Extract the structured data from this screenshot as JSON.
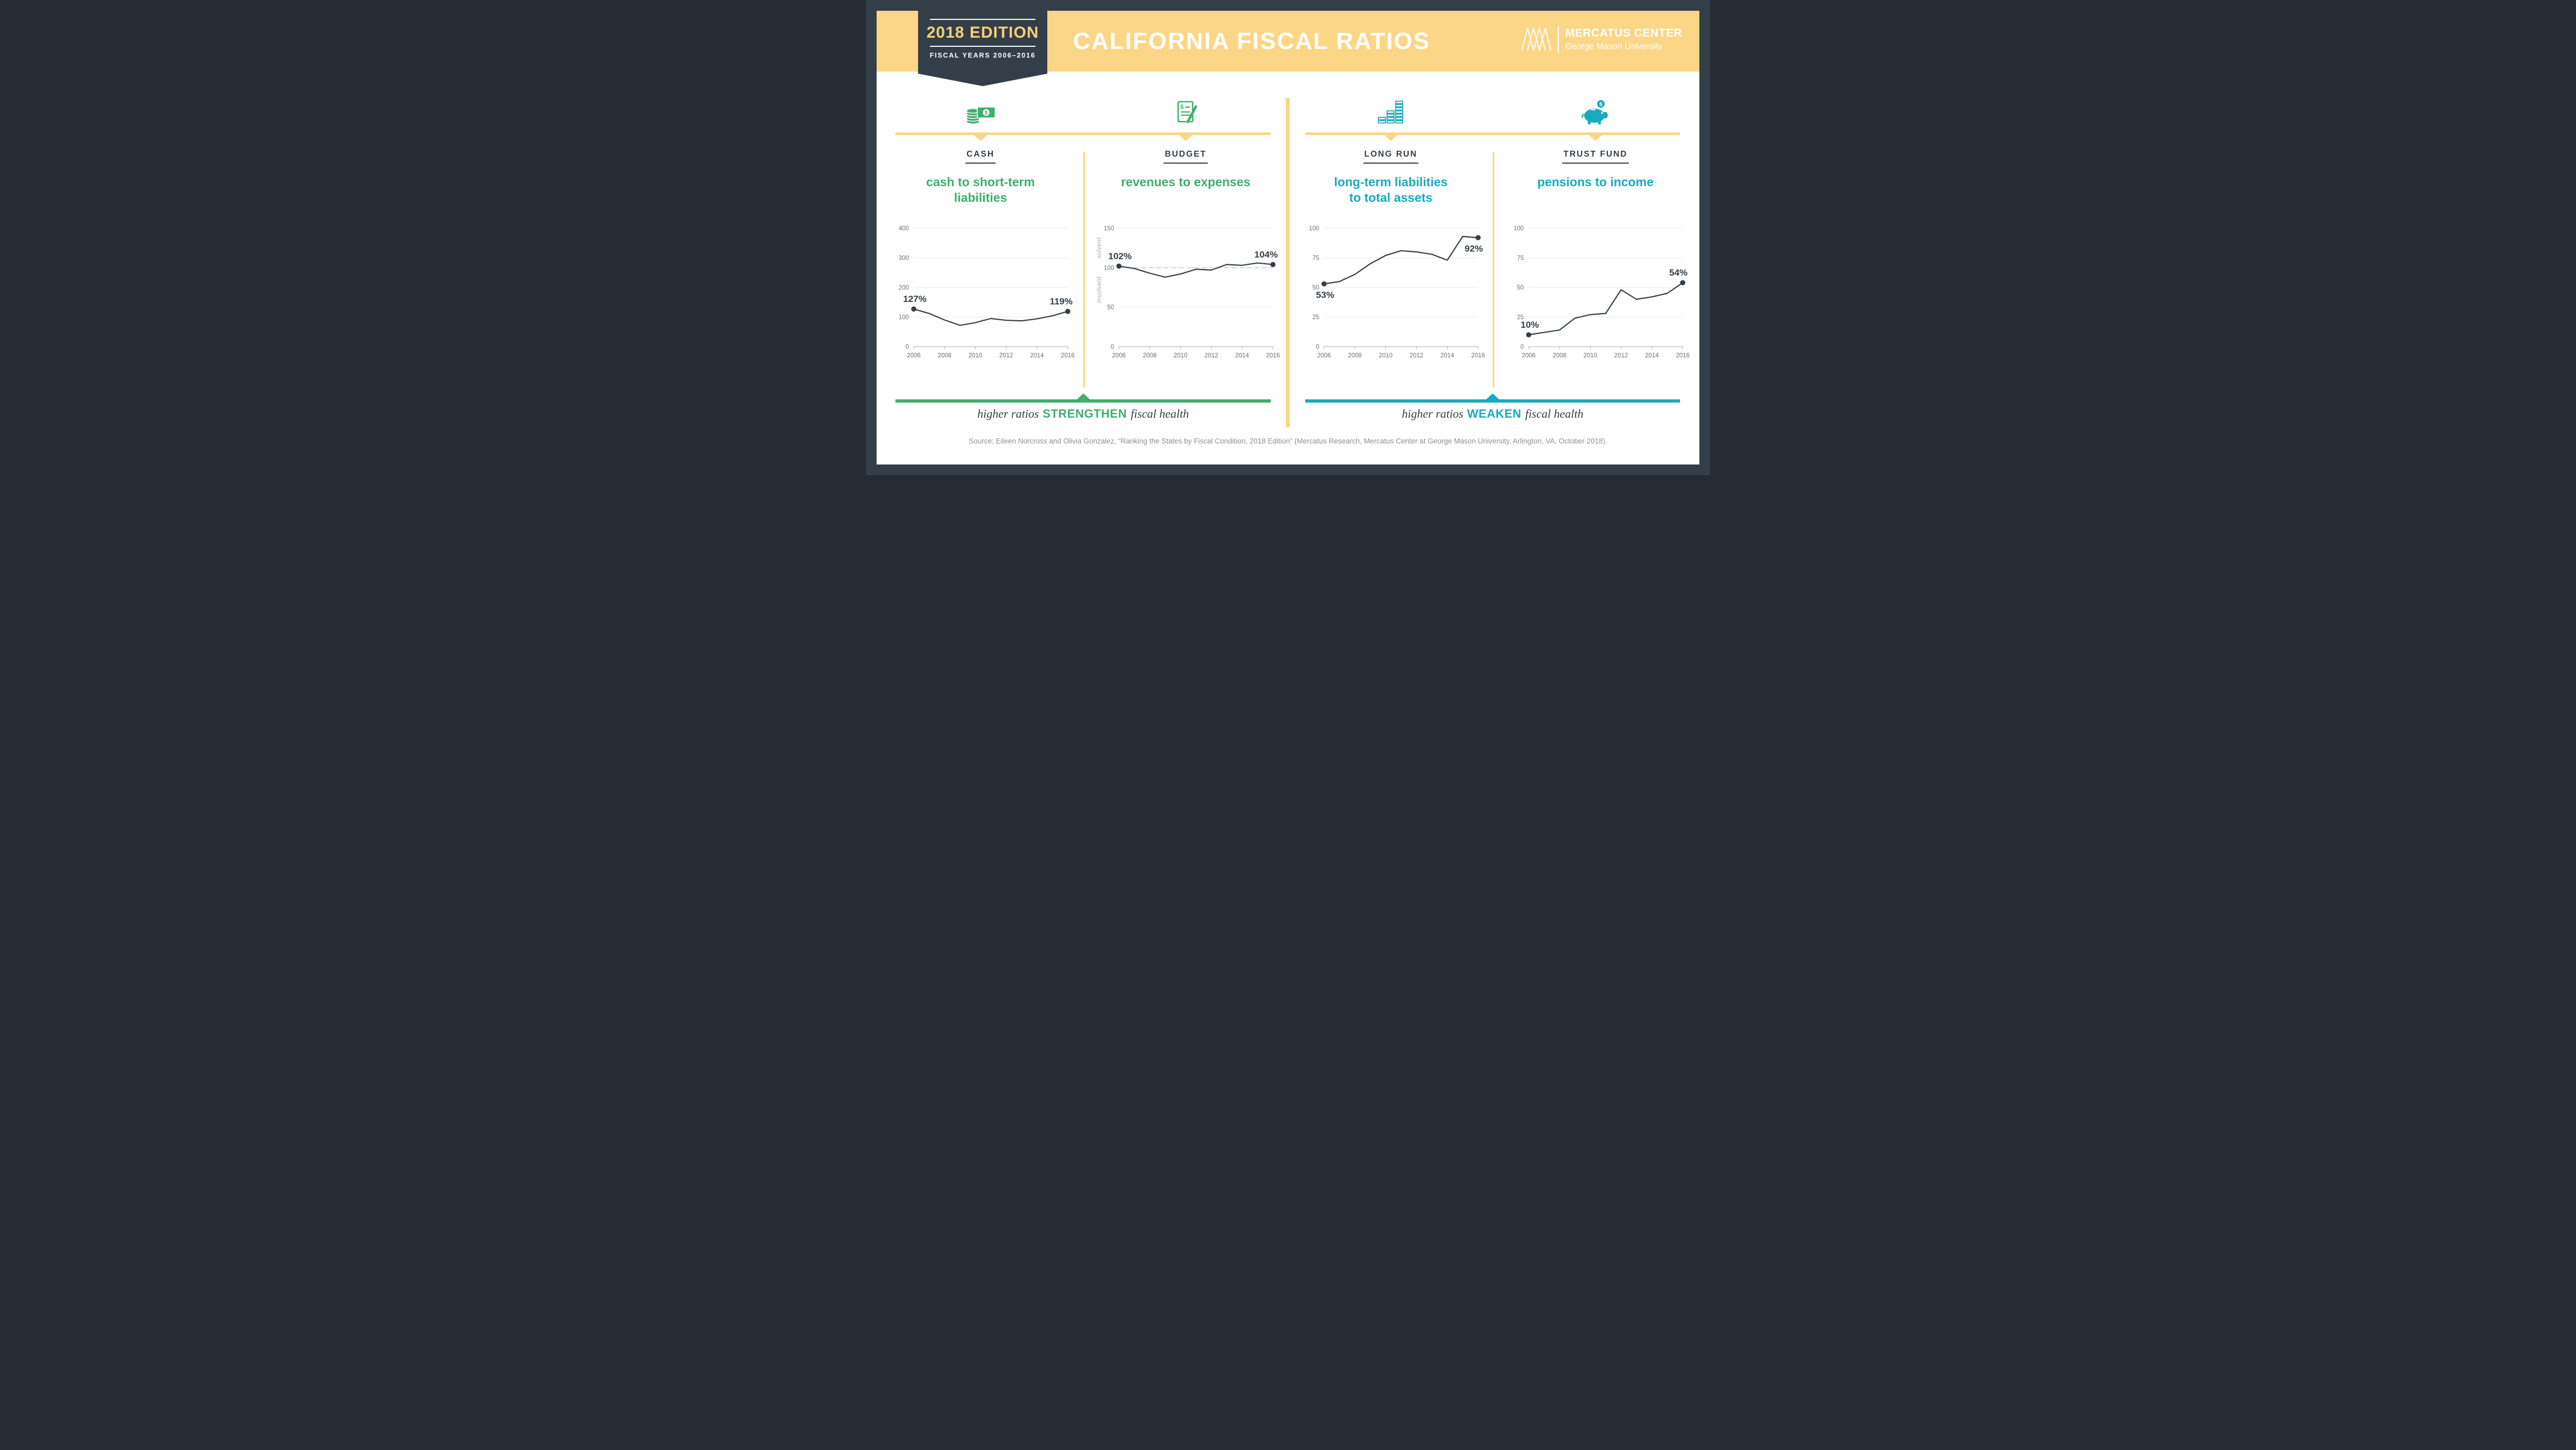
{
  "header": {
    "badge": {
      "title": "2018 EDITION",
      "subtitle": "FISCAL YEARS 2006–2016"
    },
    "title": "CALIFORNIA FISCAL RATIOS",
    "logo": {
      "name": "MERCATUS CENTER",
      "sub": "George Mason University"
    }
  },
  "colors": {
    "navy": "#333e48",
    "yellow": "#fbd687",
    "green": "#3fae6e",
    "teal": "#17abc0"
  },
  "captions": {
    "strengthen": {
      "prefix": "higher ratios",
      "keyword": "STRENGTHEN",
      "suffix": "fiscal health"
    },
    "weaken": {
      "prefix": "higher ratios",
      "keyword": "WEAKEN",
      "suffix": "fiscal health"
    }
  },
  "source": "Source: Eileen Norcross and Olivia Gonzalez, “Ranking the States by Fiscal Condition, 2018 Edition” (Mercatus Research, Mercatus Center at George Mason University, Arlington, VA, October 2018).",
  "chart_data": [
    {
      "type": "line",
      "id": "cash",
      "icon": "coins-and-banknote-icon",
      "section_label": "CASH",
      "title": "cash to short-term liabilities",
      "title_lines": [
        "cash to short-term",
        "liabilities"
      ],
      "accent_color": "#3fae6e",
      "line_color": "#333e48",
      "x": [
        2006,
        2007,
        2008,
        2009,
        2010,
        2011,
        2012,
        2013,
        2014,
        2015,
        2016
      ],
      "values": [
        127,
        112,
        90,
        72,
        81,
        95,
        89,
        87,
        94,
        104,
        119
      ],
      "ylim": [
        0,
        400
      ],
      "yticks": [
        0,
        100,
        200,
        300,
        400
      ],
      "xticks": [
        2006,
        2008,
        2010,
        2012,
        2014,
        2016
      ],
      "start_label": "127%",
      "end_label": "119%",
      "start_label_placement": "above",
      "end_label_placement": "above",
      "grid": true,
      "legend": "none"
    },
    {
      "type": "line",
      "id": "budget",
      "icon": "document-and-pencil-icon",
      "section_label": "BUDGET",
      "title": "revenues to expenses",
      "title_lines": [
        "revenues to expenses"
      ],
      "accent_color": "#3fae6e",
      "line_color": "#333e48",
      "x": [
        2006,
        2007,
        2008,
        2009,
        2010,
        2011,
        2012,
        2013,
        2014,
        2015,
        2016
      ],
      "values": [
        102,
        99,
        93,
        88,
        92,
        98,
        97,
        104,
        103,
        106,
        104
      ],
      "ylim": [
        0,
        150
      ],
      "yticks": [
        0,
        50,
        100,
        150
      ],
      "xticks": [
        2006,
        2008,
        2010,
        2012,
        2014,
        2016
      ],
      "reference_line": 100,
      "zone_labels": {
        "above": "solvent",
        "below": "insolvent"
      },
      "start_label": "102%",
      "end_label": "104%",
      "start_label_placement": "above",
      "end_label_placement": "above",
      "grid": true,
      "legend": "none"
    },
    {
      "type": "line",
      "id": "long-run",
      "icon": "stacked-money-bars-icon",
      "section_label": "LONG RUN",
      "title": "long-term liabilities to total assets",
      "title_lines": [
        "long-term liabilities",
        "to total assets"
      ],
      "accent_color": "#17abc0",
      "line_color": "#333e48",
      "x": [
        2006,
        2007,
        2008,
        2009,
        2010,
        2011,
        2012,
        2013,
        2014,
        2015,
        2016
      ],
      "values": [
        53,
        55,
        61,
        70,
        77,
        81,
        80,
        78,
        73,
        93,
        92
      ],
      "ylim": [
        0,
        100
      ],
      "yticks": [
        0,
        25,
        50,
        75,
        100
      ],
      "xticks": [
        2006,
        2008,
        2010,
        2012,
        2014,
        2016
      ],
      "start_label": "53%",
      "end_label": "92%",
      "start_label_placement": "below",
      "end_label_placement": "below",
      "grid": true,
      "legend": "none"
    },
    {
      "type": "line",
      "id": "trust-fund",
      "icon": "piggy-bank-icon",
      "section_label": "TRUST FUND",
      "title": "pensions to income",
      "title_lines": [
        "pensions to income"
      ],
      "accent_color": "#17abc0",
      "line_color": "#333e48",
      "x": [
        2006,
        2007,
        2008,
        2009,
        2010,
        2011,
        2012,
        2013,
        2014,
        2015,
        2016
      ],
      "values": [
        10,
        12,
        14,
        24,
        27,
        28,
        48,
        40,
        42,
        45,
        54
      ],
      "ylim": [
        0,
        100
      ],
      "yticks": [
        0,
        25,
        50,
        75,
        100
      ],
      "xticks": [
        2006,
        2008,
        2010,
        2012,
        2014,
        2016
      ],
      "start_label": "10%",
      "end_label": "54%",
      "start_label_placement": "above",
      "end_label_placement": "above",
      "grid": true,
      "legend": "none"
    }
  ]
}
